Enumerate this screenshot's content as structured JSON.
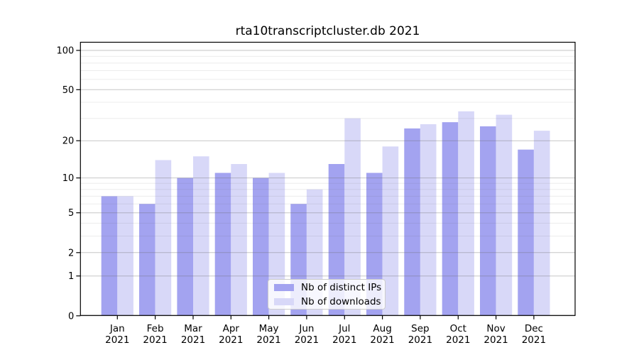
{
  "chart_data": {
    "type": "bar",
    "title": "rta10transcriptcluster.db 2021",
    "categories": [
      "Jan",
      "Feb",
      "Mar",
      "Apr",
      "May",
      "Jun",
      "Jul",
      "Aug",
      "Sep",
      "Oct",
      "Nov",
      "Dec"
    ],
    "x_tick_year": "2021",
    "series": [
      {
        "name": "Nb of distinct IPs",
        "color": "#a3a3f0",
        "values": [
          7,
          6,
          10,
          11,
          10,
          6,
          13,
          11,
          25,
          28,
          26,
          17
        ]
      },
      {
        "name": "Nb of downloads",
        "color": "#d8d8f8",
        "values": [
          7,
          14,
          15,
          13,
          11,
          8,
          30,
          18,
          27,
          34,
          32,
          24
        ]
      }
    ],
    "y_scale": "log10(1+x)",
    "ylim": [
      0,
      116
    ],
    "y_major_ticks": [
      0,
      1,
      2,
      5,
      10,
      20,
      50,
      100
    ],
    "y_minor_gridlines": [
      3,
      4,
      6,
      7,
      8,
      9,
      30,
      40,
      60,
      70,
      80,
      90
    ],
    "grid": true,
    "legend_position": "inside-bottom-center",
    "colors": {
      "axis": "#000000",
      "major_grid": "rgba(105,105,105,0.38)",
      "minor_grid": "rgba(105,105,105,0.13)"
    }
  }
}
